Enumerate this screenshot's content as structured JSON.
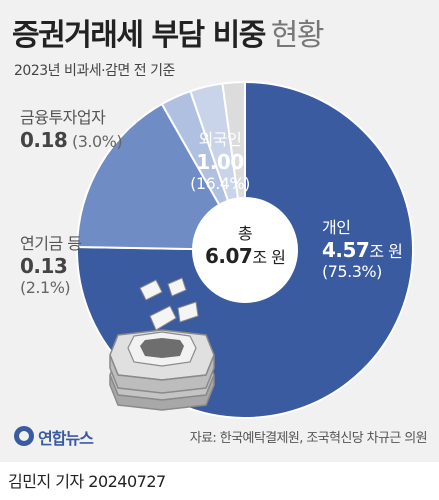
{
  "title": {
    "main": "증권거래세 부담 비중",
    "sub": "현황"
  },
  "subtitle": "2023년 비과세·감면 전 기준",
  "center": {
    "label": "총",
    "value": "6.07",
    "unit": "조 원"
  },
  "chart_data": {
    "type": "pie",
    "unit": "조 원",
    "slices": [
      {
        "label": "개인",
        "value": 4.57,
        "percent": 75.3,
        "value_text": "4.57",
        "percent_text": "(75.3%)",
        "color": "#3a5ba0"
      },
      {
        "label": "외국인",
        "value": 1.0,
        "percent": 16.4,
        "value_text": "1.00",
        "percent_text": "(16.4%)",
        "color": "#6f8cc4"
      },
      {
        "label": "금융투자업자",
        "value": 0.18,
        "percent": 3.0,
        "value_text": "0.18",
        "percent_text": "(3.0%)",
        "color": "#b0c0e0"
      },
      {
        "label": "",
        "value": 0.19,
        "percent": 3.2,
        "color": "#c9d4ea"
      },
      {
        "label": "연기금 등",
        "value": 0.13,
        "percent": 2.1,
        "value_text": "0.13",
        "percent_text": "(2.1%)",
        "color": "#dcdcdc"
      }
    ]
  },
  "footer": {
    "logo": "연합뉴스",
    "source": "자료: 한국예탁결제원, 조국혁신당 차규근 의원",
    "byline": "김민지 기자  20240727"
  }
}
